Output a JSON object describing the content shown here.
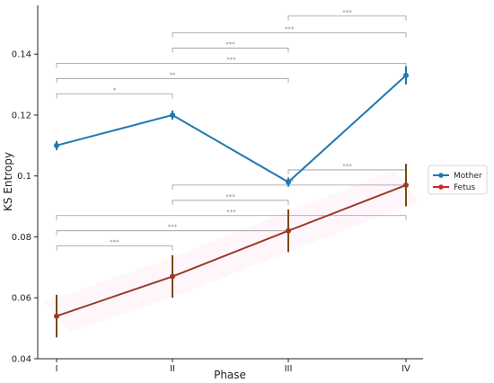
{
  "chart_data": {
    "type": "line",
    "title": "",
    "xlabel": "Phase",
    "ylabel": "KS Entropy",
    "categories": [
      "I",
      "II",
      "III",
      "IV"
    ],
    "ylim": [
      0.04,
      0.156
    ],
    "yticks": [
      0.04,
      0.06,
      0.08,
      0.1,
      0.12,
      0.14
    ],
    "ytick_labels": [
      "0.04",
      "0.06",
      "0.08",
      "0.1",
      "0.12",
      "0.14"
    ],
    "grid": false,
    "legend_position": "right",
    "series": [
      {
        "name": "Mother",
        "color": "#1f77b4",
        "values": [
          0.11,
          0.12,
          0.098,
          0.133
        ],
        "errors": [
          0.0015,
          0.0015,
          0.0015,
          0.003
        ]
      },
      {
        "name": "Fetus",
        "color": "#d62728",
        "line_color": "#9c3a25",
        "errorbar_color": "#7a4a10",
        "values": [
          0.054,
          0.067,
          0.082,
          0.097
        ],
        "errors": [
          0.007,
          0.007,
          0.007,
          0.007
        ]
      }
    ],
    "significance_brackets": [
      {
        "from": 2,
        "to": 3,
        "y": 0.1525,
        "label": "***"
      },
      {
        "from": 1,
        "to": 3,
        "y": 0.147,
        "label": "***"
      },
      {
        "from": 1,
        "to": 2,
        "y": 0.142,
        "label": "***"
      },
      {
        "from": 0,
        "to": 3,
        "y": 0.137,
        "label": "***"
      },
      {
        "from": 0,
        "to": 2,
        "y": 0.132,
        "label": "**"
      },
      {
        "from": 0,
        "to": 1,
        "y": 0.127,
        "label": "*"
      },
      {
        "from": 2,
        "to": 3,
        "y": 0.102,
        "label": "***"
      },
      {
        "from": 1,
        "to": 3,
        "y": 0.097,
        "label": "***"
      },
      {
        "from": 1,
        "to": 2,
        "y": 0.092,
        "label": "***"
      },
      {
        "from": 0,
        "to": 3,
        "y": 0.087,
        "label": "***"
      },
      {
        "from": 0,
        "to": 2,
        "y": 0.082,
        "label": "***"
      },
      {
        "from": 0,
        "to": 1,
        "y": 0.077,
        "label": "***"
      }
    ]
  }
}
